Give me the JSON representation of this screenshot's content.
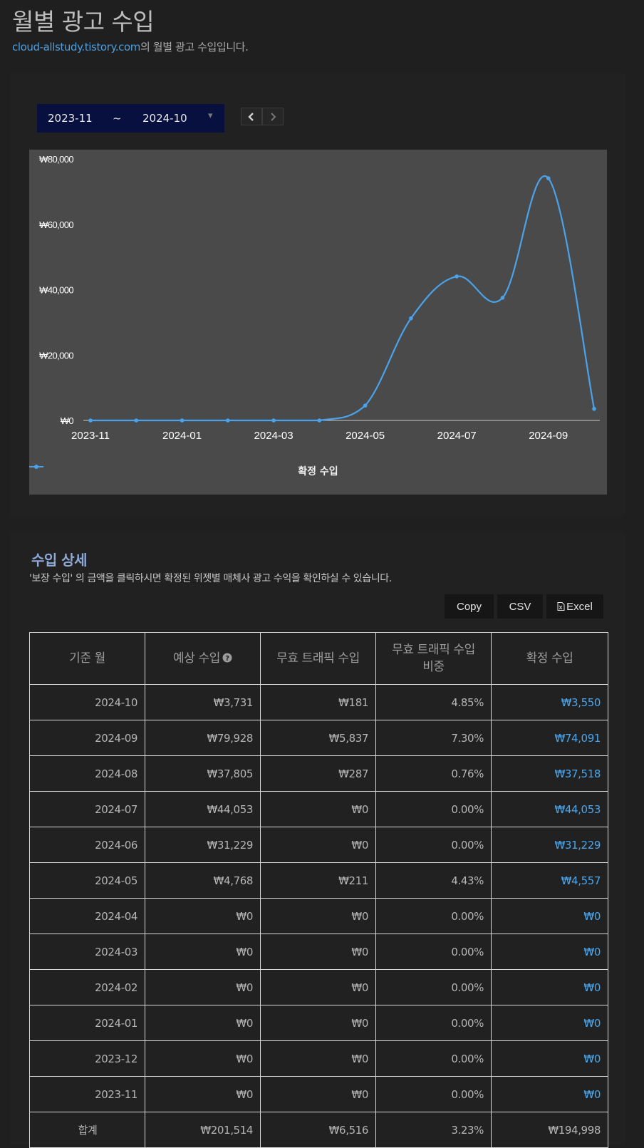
{
  "header": {
    "title": "월별 광고 수입",
    "site_link": "cloud-allstudy.tistory.com",
    "subtitle_suffix": "의 월별 광고 수입입니다."
  },
  "date_range": {
    "start": "2023-11",
    "separator": "~",
    "end": "2024-10"
  },
  "chart_data": {
    "type": "line",
    "series": [
      {
        "name": "확정 수입",
        "color": "#4aa3ea",
        "x": [
          "2023-11",
          "2023-12",
          "2024-01",
          "2024-02",
          "2024-03",
          "2024-04",
          "2024-05",
          "2024-06",
          "2024-07",
          "2024-08",
          "2024-09",
          "2024-10"
        ],
        "values": [
          0,
          0,
          0,
          0,
          0,
          0,
          4557,
          31229,
          44053,
          37518,
          74091,
          3550
        ]
      }
    ],
    "x_tick_labels": [
      "2023-11",
      "2024-01",
      "2024-03",
      "2024-05",
      "2024-07",
      "2024-09"
    ],
    "y_tick_labels": [
      "₩80,000",
      "₩60,000",
      "₩40,000",
      "₩20,000",
      "₩0"
    ],
    "y_ticks": [
      80000,
      60000,
      40000,
      20000,
      0
    ],
    "ylim": [
      0,
      80000
    ],
    "grid": false,
    "legend_position": "bottom-center",
    "title": "",
    "xlabel": "",
    "ylabel": ""
  },
  "detail": {
    "title": "수입 상세",
    "description": "'보장 수입' 의 금액을 클릭하시면 확정된 위젯별 매체사 광고 수익을 확인하실 수 있습니다.",
    "buttons": {
      "copy": "Copy",
      "csv": "CSV",
      "excel": "Excel"
    },
    "columns": [
      "기준 월",
      "예상 수입",
      "무효 트래픽 수입",
      "무효 트래픽 수입 비중",
      "확정 수입"
    ],
    "rows": [
      {
        "month": "2024-10",
        "expected": "₩3,731",
        "invalid": "₩181",
        "ratio": "4.85%",
        "confirmed": "₩3,550"
      },
      {
        "month": "2024-09",
        "expected": "₩79,928",
        "invalid": "₩5,837",
        "ratio": "7.30%",
        "confirmed": "₩74,091"
      },
      {
        "month": "2024-08",
        "expected": "₩37,805",
        "invalid": "₩287",
        "ratio": "0.76%",
        "confirmed": "₩37,518"
      },
      {
        "month": "2024-07",
        "expected": "₩44,053",
        "invalid": "₩0",
        "ratio": "0.00%",
        "confirmed": "₩44,053"
      },
      {
        "month": "2024-06",
        "expected": "₩31,229",
        "invalid": "₩0",
        "ratio": "0.00%",
        "confirmed": "₩31,229"
      },
      {
        "month": "2024-05",
        "expected": "₩4,768",
        "invalid": "₩211",
        "ratio": "4.43%",
        "confirmed": "₩4,557"
      },
      {
        "month": "2024-04",
        "expected": "₩0",
        "invalid": "₩0",
        "ratio": "0.00%",
        "confirmed": "₩0"
      },
      {
        "month": "2024-03",
        "expected": "₩0",
        "invalid": "₩0",
        "ratio": "0.00%",
        "confirmed": "₩0"
      },
      {
        "month": "2024-02",
        "expected": "₩0",
        "invalid": "₩0",
        "ratio": "0.00%",
        "confirmed": "₩0"
      },
      {
        "month": "2024-01",
        "expected": "₩0",
        "invalid": "₩0",
        "ratio": "0.00%",
        "confirmed": "₩0"
      },
      {
        "month": "2023-12",
        "expected": "₩0",
        "invalid": "₩0",
        "ratio": "0.00%",
        "confirmed": "₩0"
      },
      {
        "month": "2023-11",
        "expected": "₩0",
        "invalid": "₩0",
        "ratio": "0.00%",
        "confirmed": "₩0"
      }
    ],
    "total": {
      "month": "합계",
      "expected": "₩201,514",
      "invalid": "₩6,516",
      "ratio": "3.23%",
      "confirmed": "₩194,998"
    }
  }
}
